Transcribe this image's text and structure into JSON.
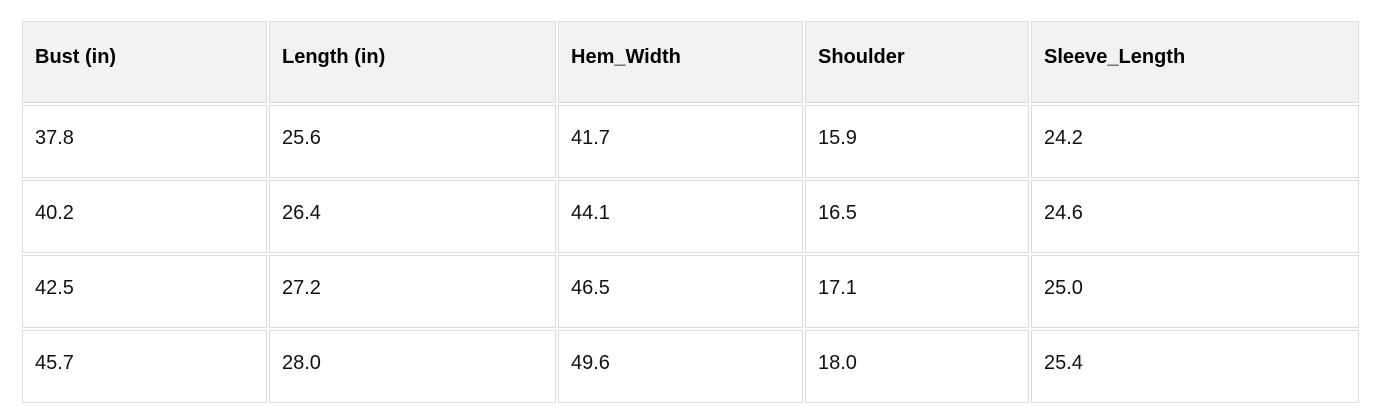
{
  "table": {
    "columns": [
      "Bust (in)",
      "Length (in)",
      "Hem_Width",
      "Shoulder",
      "Sleeve_Length"
    ],
    "rows": [
      [
        "37.8",
        "25.6",
        "41.7",
        "15.9",
        "24.2"
      ],
      [
        "40.2",
        "26.4",
        "44.1",
        "16.5",
        "24.6"
      ],
      [
        "42.5",
        "27.2",
        "46.5",
        "17.1",
        "25.0"
      ],
      [
        "45.7",
        "28.0",
        "49.6",
        "18.0",
        "25.4"
      ]
    ]
  },
  "colors": {
    "header_background": "#f2f2f2",
    "cell_background": "#ffffff",
    "border": "#dcdcdc",
    "text": "#111111"
  }
}
